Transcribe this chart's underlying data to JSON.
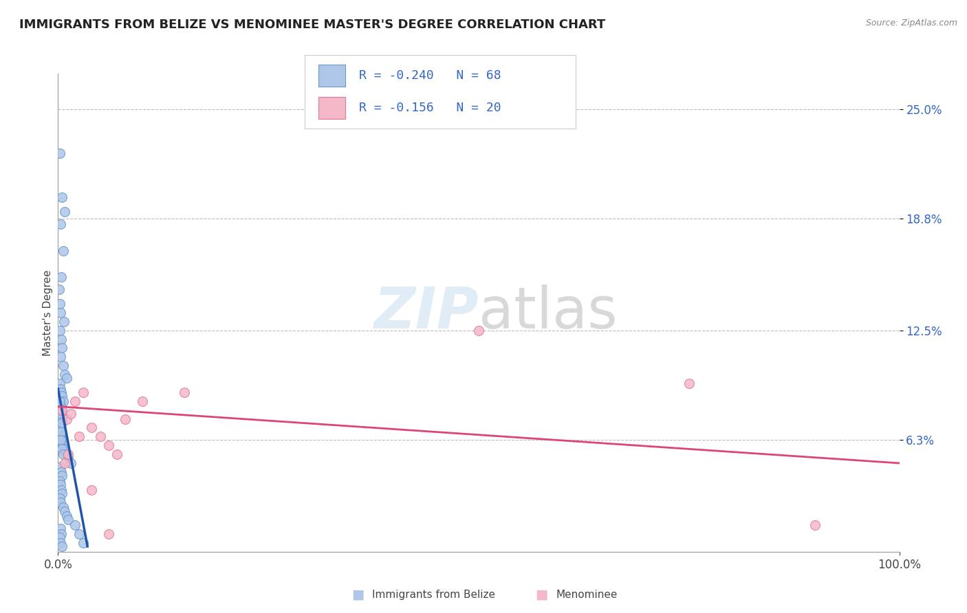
{
  "title": "IMMIGRANTS FROM BELIZE VS MENOMINEE MASTER'S DEGREE CORRELATION CHART",
  "source": "Source: ZipAtlas.com",
  "ylabel": "Master's Degree",
  "xlim": [
    0,
    100
  ],
  "ylim": [
    0,
    27
  ],
  "blue_R": -0.24,
  "blue_N": 68,
  "pink_R": -0.156,
  "pink_N": 20,
  "blue_color": "#aec6e8",
  "blue_edge": "#6699cc",
  "pink_color": "#f4b8c8",
  "pink_edge": "#e0789a",
  "blue_line_color": "#2255aa",
  "pink_line_color": "#dd4477",
  "background_color": "#ffffff",
  "legend_label_blue": "Immigrants from Belize",
  "legend_label_pink": "Menominee",
  "title_color": "#222222",
  "axis_color": "#444444",
  "corr_text_color": "#3366cc",
  "grid_color": "#bbbbbb",
  "ytick_vals": [
    6.3,
    12.5,
    18.8,
    25.0
  ],
  "ytick_labels": [
    "6.3%",
    "12.5%",
    "18.8%",
    "25.0%"
  ],
  "blue_x": [
    0.2,
    0.5,
    0.8,
    0.3,
    0.6,
    0.4,
    0.1,
    0.2,
    0.3,
    0.7,
    0.2,
    0.4,
    0.5,
    0.3,
    0.6,
    0.8,
    1.0,
    0.2,
    0.3,
    0.4,
    0.5,
    0.6,
    0.3,
    0.2,
    0.4,
    0.5,
    0.3,
    0.2,
    0.4,
    0.3,
    0.5,
    0.6,
    0.8,
    1.0,
    1.2,
    1.5,
    0.3,
    0.4,
    0.5,
    0.2,
    0.3,
    0.4,
    0.5,
    0.2,
    0.3,
    0.6,
    0.8,
    1.0,
    1.2,
    2.0,
    0.3,
    0.4,
    0.2,
    0.3,
    0.5,
    0.4,
    0.3,
    0.2,
    0.4,
    0.3,
    0.5,
    0.6,
    2.5,
    3.0,
    0.2,
    0.3,
    0.4,
    0.5
  ],
  "blue_y": [
    22.5,
    20.0,
    19.2,
    18.5,
    17.0,
    15.5,
    14.8,
    14.0,
    13.5,
    13.0,
    12.5,
    12.0,
    11.5,
    11.0,
    10.5,
    10.0,
    9.8,
    9.5,
    9.2,
    9.0,
    8.8,
    8.5,
    8.2,
    8.0,
    7.8,
    7.5,
    7.3,
    7.0,
    6.8,
    6.5,
    6.3,
    6.0,
    5.8,
    5.5,
    5.3,
    5.0,
    4.8,
    4.5,
    4.3,
    4.0,
    3.8,
    3.5,
    3.3,
    3.0,
    2.8,
    2.5,
    2.3,
    2.0,
    1.8,
    1.5,
    1.3,
    1.0,
    0.8,
    0.5,
    0.3,
    7.5,
    7.2,
    7.0,
    6.8,
    6.3,
    5.8,
    5.5,
    1.0,
    0.5,
    8.5,
    8.0,
    7.8,
    7.3
  ],
  "pink_x": [
    0.5,
    1.0,
    1.5,
    2.0,
    3.0,
    4.0,
    5.0,
    6.0,
    7.0,
    8.0,
    10.0,
    15.0,
    50.0,
    75.0,
    90.0,
    0.8,
    1.2,
    2.5,
    4.0,
    6.0
  ],
  "pink_y": [
    8.0,
    7.5,
    7.8,
    8.5,
    9.0,
    7.0,
    6.5,
    6.0,
    5.5,
    7.5,
    8.5,
    9.0,
    12.5,
    9.5,
    1.5,
    5.0,
    5.5,
    6.5,
    3.5,
    1.0
  ],
  "blue_trend_start_x": 0.0,
  "blue_trend_end_x": 3.5,
  "blue_trend_start_y": 9.2,
  "blue_trend_end_y": 0.3,
  "pink_trend_start_x": 0.0,
  "pink_trend_end_x": 100.0,
  "pink_trend_start_y": 8.2,
  "pink_trend_end_y": 5.0,
  "marker_size": 100
}
